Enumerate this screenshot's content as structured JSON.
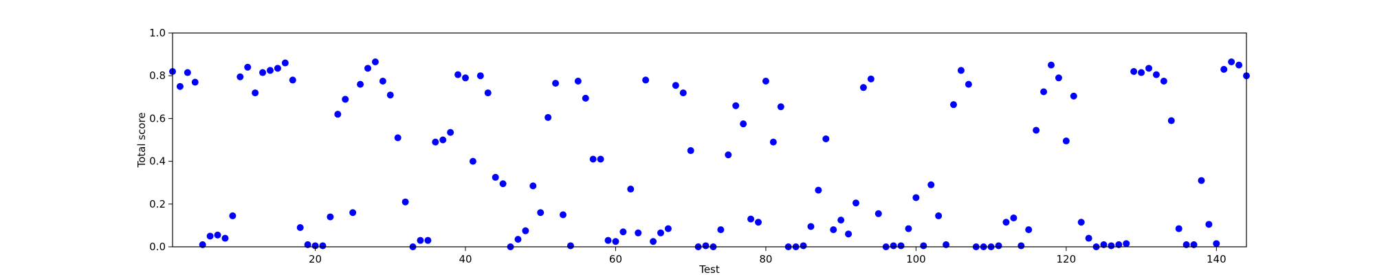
{
  "chart_data": {
    "type": "scatter",
    "title": "",
    "xlabel": "Test",
    "ylabel": "Total score",
    "xlim": [
      1,
      144
    ],
    "ylim": [
      0,
      1.0
    ],
    "x_ticks": [
      20,
      40,
      60,
      80,
      100,
      120,
      140
    ],
    "y_ticks": [
      0.0,
      0.2,
      0.4,
      0.6,
      0.8,
      1.0
    ],
    "x_tick_labels": [
      "20",
      "40",
      "60",
      "80",
      "100",
      "120",
      "140"
    ],
    "y_tick_labels": [
      "0.0",
      "0.2",
      "0.4",
      "0.6",
      "0.8",
      "1.0"
    ],
    "grid": false,
    "marker_color": "#0000ff",
    "series": [
      {
        "x": [
          1,
          2,
          3,
          4,
          5,
          6,
          7,
          8,
          9,
          10,
          11,
          12,
          13,
          14,
          15,
          16,
          17,
          18,
          19,
          20,
          21,
          22,
          23,
          24,
          25,
          26,
          27,
          28,
          29,
          30,
          31,
          32,
          33,
          34,
          35,
          36,
          37,
          38,
          39,
          40,
          41,
          42,
          43,
          44,
          45,
          46,
          47,
          48,
          49,
          50,
          51,
          52,
          53,
          54,
          55,
          56,
          57,
          58,
          59,
          60,
          61,
          62,
          63,
          64,
          65,
          66,
          67,
          68,
          69,
          70,
          71,
          72,
          73,
          74,
          75,
          76,
          77,
          78,
          79,
          80,
          81,
          82,
          83,
          84,
          85,
          86,
          87,
          88,
          89,
          90,
          91,
          92,
          93,
          94,
          95,
          96,
          97,
          98,
          99,
          100,
          101,
          102,
          103,
          104,
          105,
          106,
          107,
          108,
          109,
          110,
          111,
          112,
          113,
          114,
          115,
          116,
          117,
          118,
          119,
          120,
          121,
          122,
          123,
          124,
          125,
          126,
          127,
          128,
          129,
          130,
          131,
          132,
          133,
          134,
          135,
          136,
          137,
          138,
          139,
          140,
          141,
          142,
          143,
          144
        ],
        "y": [
          0.82,
          0.75,
          0.815,
          0.77,
          0.01,
          0.05,
          0.055,
          0.04,
          0.145,
          0.795,
          0.84,
          0.72,
          0.815,
          0.825,
          0.835,
          0.86,
          0.78,
          0.09,
          0.01,
          0.005,
          0.005,
          0.14,
          0.62,
          0.69,
          0.16,
          0.76,
          0.835,
          0.865,
          0.775,
          0.71,
          0.51,
          0.21,
          0.0,
          0.03,
          0.03,
          0.49,
          0.5,
          0.535,
          0.805,
          0.79,
          0.4,
          0.8,
          0.72,
          0.325,
          0.295,
          0.0,
          0.035,
          0.075,
          0.285,
          0.16,
          0.605,
          0.765,
          0.15,
          0.005,
          0.775,
          0.695,
          0.41,
          0.41,
          0.03,
          0.025,
          0.07,
          0.27,
          0.065,
          0.78,
          0.025,
          0.065,
          0.085,
          0.755,
          0.72,
          0.45,
          0.0,
          0.005,
          0.0,
          0.08,
          0.43,
          0.66,
          0.575,
          0.13,
          0.115,
          0.775,
          0.49,
          0.655,
          0.0,
          0.0,
          0.005,
          0.095,
          0.265,
          0.505,
          0.08,
          0.125,
          0.06,
          0.205,
          0.745,
          0.785,
          0.155,
          0.0,
          0.005,
          0.005,
          0.085,
          0.23,
          0.005,
          0.29,
          0.145,
          0.01,
          0.665,
          0.825,
          0.76,
          0.0,
          0.0,
          0.0,
          0.005,
          0.115,
          0.135,
          0.005,
          0.08,
          0.545,
          0.725,
          0.85,
          0.79,
          0.495,
          0.705,
          0.115,
          0.04,
          0.0,
          0.01,
          0.005,
          0.01,
          0.015,
          0.82,
          0.815,
          0.835,
          0.805,
          0.775,
          0.59,
          0.085,
          0.01,
          0.01,
          0.31,
          0.105,
          0.015,
          0.83,
          0.865,
          0.85,
          0.8
        ]
      }
    ]
  }
}
